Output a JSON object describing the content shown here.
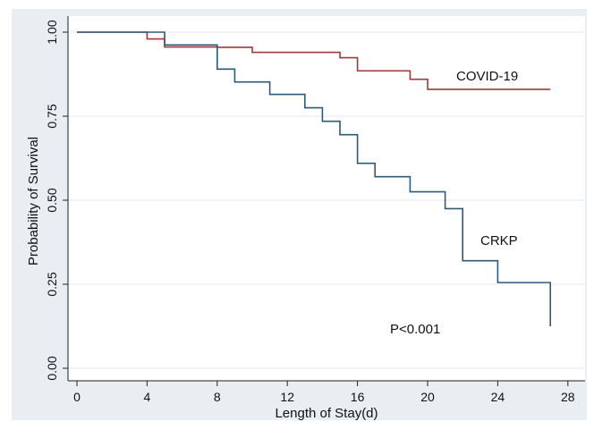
{
  "chart_data": {
    "type": "line",
    "title": "",
    "xlabel": "Length of Stay(d)",
    "ylabel": "Probability of Survival",
    "xlim": [
      0,
      28
    ],
    "ylim": [
      0,
      1
    ],
    "x_ticks": [
      0,
      4,
      8,
      12,
      16,
      20,
      24,
      28
    ],
    "y_ticks": [
      0,
      0.25,
      0.5,
      0.75,
      1
    ],
    "x_tick_labels": [
      "0",
      "4",
      "8",
      "12",
      "16",
      "20",
      "24",
      "28"
    ],
    "y_tick_labels": [
      "0.00",
      "0.25",
      "0.50",
      "0.75",
      "1.00"
    ],
    "grid": "horizontal",
    "step": true,
    "series": [
      {
        "name": "COVID-19",
        "color": "#a03a3a",
        "x": [
          0,
          4,
          5,
          8,
          10,
          15,
          16,
          19,
          20,
          27
        ],
        "y": [
          1.0,
          0.98,
          0.956,
          0.955,
          0.94,
          0.924,
          0.885,
          0.86,
          0.83,
          0.83
        ]
      },
      {
        "name": "CRKP",
        "color": "#2e5a7a",
        "x": [
          0,
          5,
          8,
          9,
          11,
          13,
          14,
          15,
          16,
          17,
          19,
          21,
          22,
          24,
          27
        ],
        "y": [
          1.0,
          0.962,
          0.89,
          0.852,
          0.815,
          0.775,
          0.735,
          0.695,
          0.61,
          0.57,
          0.525,
          0.475,
          0.32,
          0.255,
          0.125
        ]
      }
    ],
    "annotations": [
      "P<0.001"
    ]
  }
}
